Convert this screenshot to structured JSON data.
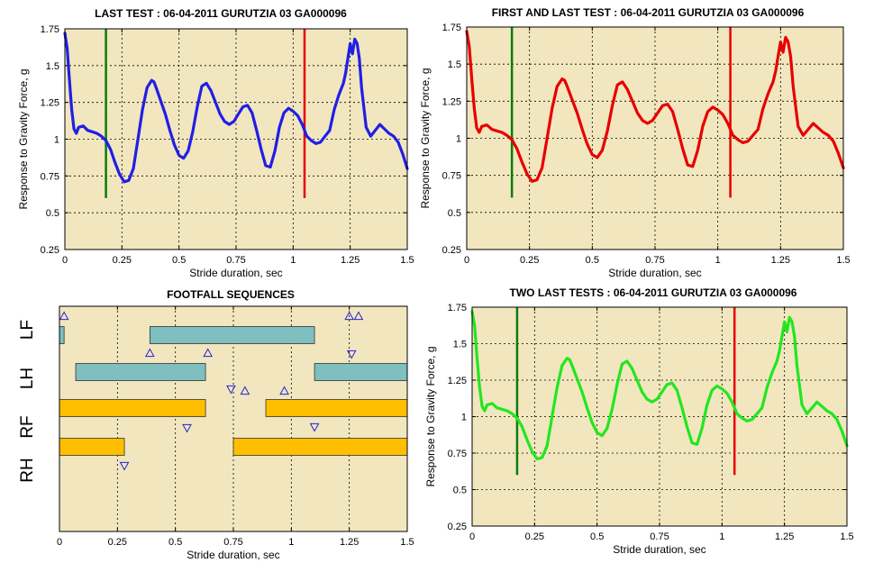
{
  "chart_data": [
    {
      "type": "line",
      "title": "LAST TEST : 06-04-2011 GURUTZIA 03 GA000096",
      "xlabel": "Stride duration, sec",
      "ylabel": "Response to Gravity Force, g",
      "xlim": [
        0,
        1.5
      ],
      "ylim": [
        0.25,
        1.75
      ],
      "xticks": [
        "0",
        "0.25",
        "0.5",
        "0.75",
        "1",
        "1.25",
        "1.5"
      ],
      "yticks": [
        "0.25",
        "0.5",
        "0.75",
        "1",
        "1.25",
        "1.5",
        "1.75"
      ],
      "grid": true,
      "background": "#f2e6bf",
      "series": [
        {
          "color": "#1f1fe6",
          "x": [
            0.0,
            0.01,
            0.02,
            0.03,
            0.04,
            0.05,
            0.06,
            0.08,
            0.1,
            0.12,
            0.14,
            0.16,
            0.18,
            0.2,
            0.22,
            0.24,
            0.26,
            0.28,
            0.3,
            0.32,
            0.34,
            0.36,
            0.38,
            0.39,
            0.4,
            0.42,
            0.44,
            0.46,
            0.48,
            0.5,
            0.52,
            0.54,
            0.56,
            0.58,
            0.6,
            0.62,
            0.64,
            0.66,
            0.68,
            0.7,
            0.72,
            0.74,
            0.76,
            0.78,
            0.8,
            0.82,
            0.84,
            0.86,
            0.88,
            0.9,
            0.92,
            0.94,
            0.96,
            0.98,
            1.0,
            1.02,
            1.04,
            1.06,
            1.08,
            1.1,
            1.12,
            1.14,
            1.16,
            1.18,
            1.2,
            1.22,
            1.23,
            1.24,
            1.25,
            1.26,
            1.27,
            1.28,
            1.29,
            1.3,
            1.32,
            1.34,
            1.36,
            1.38,
            1.4,
            1.42,
            1.44,
            1.46,
            1.48,
            1.5
          ],
          "y": [
            1.72,
            1.62,
            1.4,
            1.2,
            1.07,
            1.04,
            1.08,
            1.09,
            1.06,
            1.05,
            1.04,
            1.02,
            0.99,
            0.93,
            0.84,
            0.76,
            0.71,
            0.72,
            0.8,
            1.0,
            1.2,
            1.35,
            1.4,
            1.39,
            1.35,
            1.26,
            1.17,
            1.06,
            0.96,
            0.89,
            0.87,
            0.92,
            1.05,
            1.22,
            1.36,
            1.38,
            1.33,
            1.25,
            1.17,
            1.12,
            1.1,
            1.12,
            1.17,
            1.22,
            1.23,
            1.18,
            1.06,
            0.93,
            0.82,
            0.81,
            0.92,
            1.08,
            1.18,
            1.21,
            1.19,
            1.16,
            1.1,
            1.02,
            0.99,
            0.97,
            0.98,
            1.02,
            1.06,
            1.2,
            1.3,
            1.38,
            1.45,
            1.55,
            1.65,
            1.58,
            1.68,
            1.65,
            1.55,
            1.35,
            1.08,
            1.02,
            1.06,
            1.1,
            1.07,
            1.04,
            1.02,
            0.98,
            0.9,
            0.8
          ]
        }
      ],
      "markers": [
        {
          "x": 0.18,
          "y0": 0.6,
          "y1": 1.75,
          "color": "#0a7d0a"
        },
        {
          "x": 1.05,
          "y0": 0.6,
          "y1": 1.75,
          "color": "#e60000"
        }
      ]
    },
    {
      "type": "line",
      "title": "FIRST AND LAST TEST : 06-04-2011 GURUTZIA 03 GA000096",
      "xlabel": "Stride duration, sec",
      "ylabel": "Response to Gravity Force, g",
      "xlim": [
        0,
        1.5
      ],
      "ylim": [
        0.25,
        1.75
      ],
      "xticks": [
        "0",
        "0.25",
        "0.5",
        "0.75",
        "1",
        "1.25",
        "1.5"
      ],
      "yticks": [
        "0.25",
        "0.5",
        "0.75",
        "1",
        "1.25",
        "1.5",
        "1.75"
      ],
      "grid": true,
      "background": "#f2e6bf",
      "series": [
        {
          "color": "#e60000",
          "x": [
            0.0,
            0.01,
            0.02,
            0.03,
            0.04,
            0.05,
            0.06,
            0.08,
            0.1,
            0.12,
            0.14,
            0.16,
            0.18,
            0.2,
            0.22,
            0.24,
            0.26,
            0.28,
            0.3,
            0.32,
            0.34,
            0.36,
            0.38,
            0.39,
            0.4,
            0.42,
            0.44,
            0.46,
            0.48,
            0.5,
            0.52,
            0.54,
            0.56,
            0.58,
            0.6,
            0.62,
            0.64,
            0.66,
            0.68,
            0.7,
            0.72,
            0.74,
            0.76,
            0.78,
            0.8,
            0.82,
            0.84,
            0.86,
            0.88,
            0.9,
            0.92,
            0.94,
            0.96,
            0.98,
            1.0,
            1.02,
            1.04,
            1.06,
            1.08,
            1.1,
            1.12,
            1.14,
            1.16,
            1.18,
            1.2,
            1.22,
            1.23,
            1.24,
            1.25,
            1.26,
            1.27,
            1.28,
            1.29,
            1.3,
            1.32,
            1.34,
            1.36,
            1.38,
            1.4,
            1.42,
            1.44,
            1.46,
            1.48,
            1.5
          ],
          "y": [
            1.72,
            1.62,
            1.4,
            1.2,
            1.07,
            1.04,
            1.08,
            1.09,
            1.06,
            1.05,
            1.04,
            1.02,
            0.99,
            0.93,
            0.84,
            0.76,
            0.71,
            0.72,
            0.8,
            1.0,
            1.2,
            1.35,
            1.4,
            1.39,
            1.35,
            1.26,
            1.17,
            1.06,
            0.96,
            0.89,
            0.87,
            0.92,
            1.05,
            1.22,
            1.36,
            1.38,
            1.33,
            1.25,
            1.17,
            1.12,
            1.1,
            1.12,
            1.17,
            1.22,
            1.23,
            1.18,
            1.06,
            0.93,
            0.82,
            0.81,
            0.92,
            1.08,
            1.18,
            1.21,
            1.19,
            1.16,
            1.1,
            1.02,
            0.99,
            0.97,
            0.98,
            1.02,
            1.06,
            1.2,
            1.3,
            1.38,
            1.45,
            1.55,
            1.65,
            1.58,
            1.68,
            1.65,
            1.55,
            1.35,
            1.08,
            1.02,
            1.06,
            1.1,
            1.07,
            1.04,
            1.02,
            0.98,
            0.9,
            0.8
          ]
        }
      ],
      "markers": [
        {
          "x": 0.18,
          "y0": 0.6,
          "y1": 1.75,
          "color": "#0a7d0a"
        },
        {
          "x": 1.05,
          "y0": 0.6,
          "y1": 1.75,
          "color": "#e60000"
        }
      ]
    },
    {
      "type": "gantt",
      "title": "FOOTFALL SEQUENCES",
      "xlabel": "Stride duration, sec",
      "xlim": [
        0,
        1.5
      ],
      "xticks": [
        "0",
        "0.25",
        "0.5",
        "0.75",
        "1",
        "1.25",
        "1.5"
      ],
      "grid": true,
      "background": "#f2e6bf",
      "rows": [
        "LF",
        "LH",
        "RF",
        "RH"
      ],
      "bars": [
        {
          "row": "LF",
          "start": 0.0,
          "end": 0.02,
          "color": "#7fbfbf"
        },
        {
          "row": "LF",
          "start": 0.39,
          "end": 1.1,
          "color": "#7fbfbf"
        },
        {
          "row": "LH",
          "start": 0.07,
          "end": 0.63,
          "color": "#7fbfbf"
        },
        {
          "row": "LH",
          "start": 1.1,
          "end": 1.5,
          "color": "#7fbfbf"
        },
        {
          "row": "RF",
          "start": 0.0,
          "end": 0.63,
          "color": "#ffbf00"
        },
        {
          "row": "RF",
          "start": 0.89,
          "end": 1.5,
          "color": "#ffbf00"
        },
        {
          "row": "RH",
          "start": 0.0,
          "end": 0.28,
          "color": "#ffbf00"
        },
        {
          "row": "RH",
          "start": 0.75,
          "end": 1.5,
          "color": "#ffbf00"
        }
      ],
      "events": [
        {
          "x": 0.02,
          "row": "LF",
          "pos": "above",
          "dir": "up"
        },
        {
          "x": 1.25,
          "row": "LF",
          "pos": "above",
          "dir": "up"
        },
        {
          "x": 1.29,
          "row": "LF",
          "pos": "above",
          "dir": "up"
        },
        {
          "x": 1.26,
          "row": "LF",
          "pos": "below",
          "dir": "down"
        },
        {
          "x": 0.39,
          "row": "LH",
          "pos": "above",
          "dir": "up"
        },
        {
          "x": 0.64,
          "row": "LH",
          "pos": "above",
          "dir": "up"
        },
        {
          "x": 0.8,
          "row": "LH",
          "pos": "below",
          "dir": "up"
        },
        {
          "x": 0.97,
          "row": "LH",
          "pos": "below",
          "dir": "up"
        },
        {
          "x": 0.74,
          "row": "RF",
          "pos": "above",
          "dir": "down"
        },
        {
          "x": 1.1,
          "row": "RF",
          "pos": "below",
          "dir": "down"
        },
        {
          "x": 0.55,
          "row": "RH",
          "pos": "above",
          "dir": "down"
        },
        {
          "x": 0.28,
          "row": "RH",
          "pos": "below",
          "dir": "down"
        }
      ]
    },
    {
      "type": "line",
      "title": "TWO LAST TESTS : 06-04-2011 GURUTZIA 03 GA000096",
      "xlabel": "Stride duration, sec",
      "ylabel": "Response to Gravity Force, g",
      "xlim": [
        0,
        1.5
      ],
      "ylim": [
        0.25,
        1.75
      ],
      "xticks": [
        "0",
        "0.25",
        "0.5",
        "0.75",
        "1",
        "1.25",
        "1.5"
      ],
      "yticks": [
        "0.25",
        "0.5",
        "0.75",
        "1",
        "1.25",
        "1.5",
        "1.75"
      ],
      "grid": true,
      "background": "#f2e6bf",
      "series": [
        {
          "color": "#22e61f",
          "x": [
            0.0,
            0.01,
            0.02,
            0.03,
            0.04,
            0.05,
            0.06,
            0.08,
            0.1,
            0.12,
            0.14,
            0.16,
            0.18,
            0.2,
            0.22,
            0.24,
            0.26,
            0.28,
            0.3,
            0.32,
            0.34,
            0.36,
            0.38,
            0.39,
            0.4,
            0.42,
            0.44,
            0.46,
            0.48,
            0.5,
            0.52,
            0.54,
            0.56,
            0.58,
            0.6,
            0.62,
            0.64,
            0.66,
            0.68,
            0.7,
            0.72,
            0.74,
            0.76,
            0.78,
            0.8,
            0.82,
            0.84,
            0.86,
            0.88,
            0.9,
            0.92,
            0.94,
            0.96,
            0.98,
            1.0,
            1.02,
            1.04,
            1.06,
            1.08,
            1.1,
            1.12,
            1.14,
            1.16,
            1.18,
            1.2,
            1.22,
            1.23,
            1.24,
            1.25,
            1.26,
            1.27,
            1.28,
            1.29,
            1.3,
            1.32,
            1.34,
            1.36,
            1.38,
            1.4,
            1.42,
            1.44,
            1.46,
            1.48,
            1.5
          ],
          "y": [
            1.72,
            1.62,
            1.4,
            1.2,
            1.07,
            1.04,
            1.08,
            1.09,
            1.06,
            1.05,
            1.04,
            1.02,
            0.99,
            0.93,
            0.84,
            0.76,
            0.71,
            0.72,
            0.8,
            1.0,
            1.2,
            1.35,
            1.4,
            1.39,
            1.35,
            1.26,
            1.17,
            1.06,
            0.96,
            0.89,
            0.87,
            0.92,
            1.05,
            1.22,
            1.36,
            1.38,
            1.33,
            1.25,
            1.17,
            1.12,
            1.1,
            1.12,
            1.17,
            1.22,
            1.23,
            1.18,
            1.06,
            0.93,
            0.82,
            0.81,
            0.92,
            1.08,
            1.18,
            1.21,
            1.19,
            1.16,
            1.1,
            1.02,
            0.99,
            0.97,
            0.98,
            1.02,
            1.06,
            1.2,
            1.3,
            1.38,
            1.45,
            1.55,
            1.65,
            1.58,
            1.68,
            1.65,
            1.55,
            1.35,
            1.08,
            1.02,
            1.06,
            1.1,
            1.07,
            1.04,
            1.02,
            0.98,
            0.9,
            0.8
          ]
        }
      ],
      "markers": [
        {
          "x": 0.18,
          "y0": 0.6,
          "y1": 1.75,
          "color": "#0a7d0a"
        },
        {
          "x": 1.05,
          "y0": 0.6,
          "y1": 1.75,
          "color": "#e60000"
        }
      ]
    }
  ]
}
